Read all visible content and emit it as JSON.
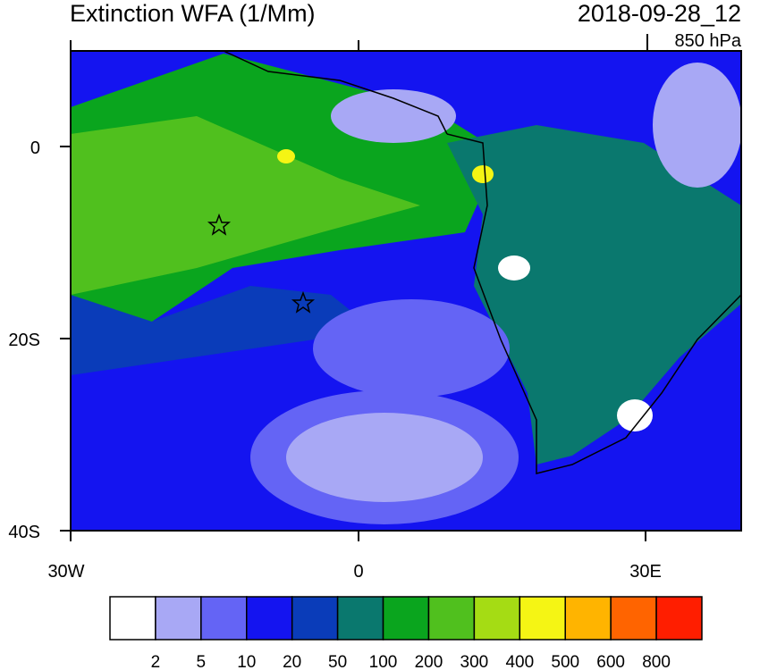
{
  "header": {
    "title": "Extinction WFA (1/Mm)",
    "date": "2018-09-28_12",
    "level": "850 hPa"
  },
  "map": {
    "lat_labels": [
      "0",
      "20S",
      "40S"
    ],
    "lon_labels": [
      "30W",
      "0",
      "30E"
    ]
  },
  "colorbar": {
    "levels": [
      2,
      5,
      10,
      20,
      50,
      100,
      200,
      300,
      400,
      500,
      600,
      800
    ],
    "colors": [
      "#ffffff",
      "#a8a8f5",
      "#6464f5",
      "#1414f0",
      "#0a3cb9",
      "#0a786e",
      "#0aa51e",
      "#50c01e",
      "#a5dc14",
      "#f5f514",
      "#ffb400",
      "#ff6400",
      "#ff1e00"
    ]
  }
}
